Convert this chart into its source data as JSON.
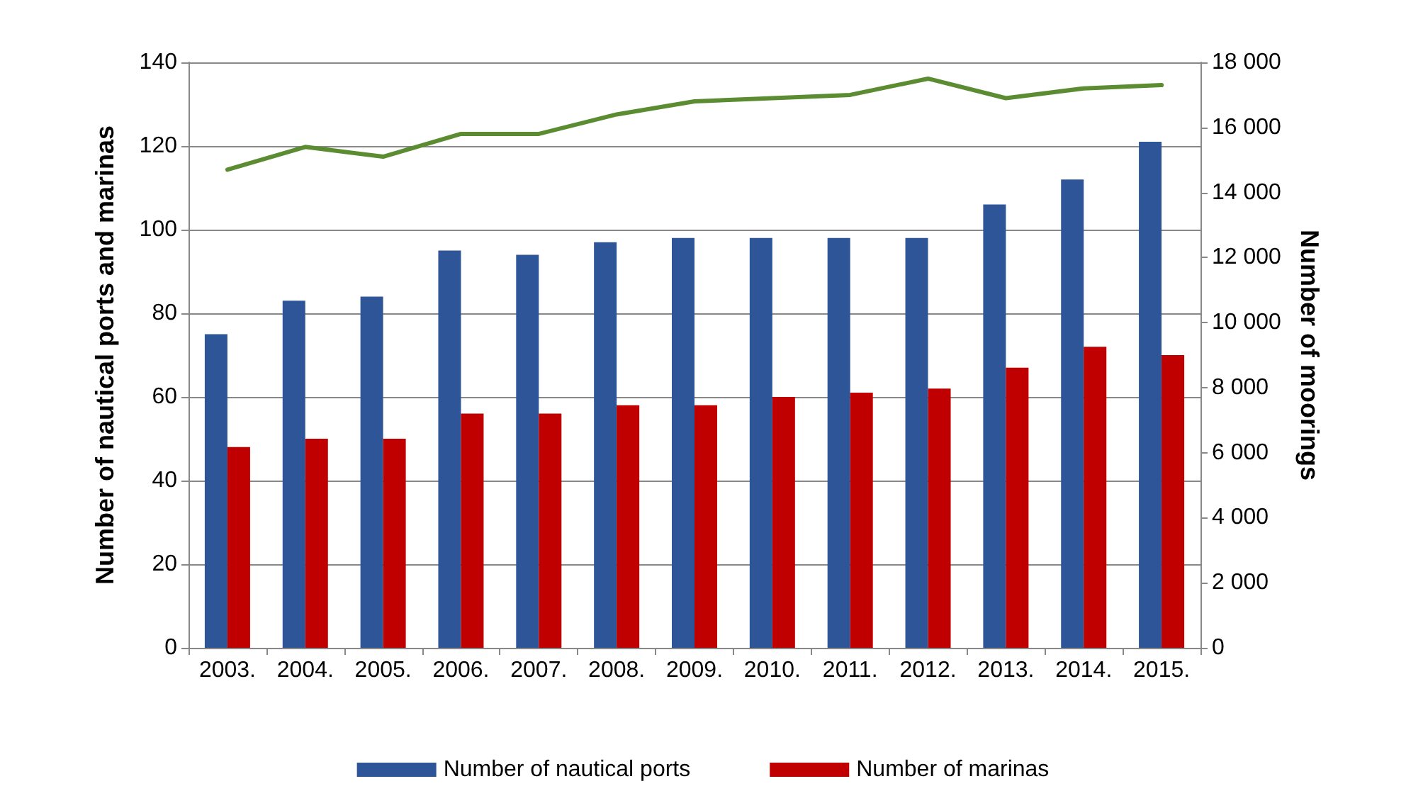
{
  "chart_data": {
    "type": "bar",
    "categories": [
      "2003.",
      "2004.",
      "2005.",
      "2006.",
      "2007.",
      "2008.",
      "2009.",
      "2010.",
      "2011.",
      "2012.",
      "2013.",
      "2014.",
      "2015."
    ],
    "ylabel": "Number of nautical ports and marinas",
    "y2label": "Number of moorings",
    "series": [
      {
        "name": "Number of nautical ports",
        "color": "#2e5597",
        "values": [
          75,
          83,
          84,
          95,
          94,
          97,
          98,
          98,
          98,
          98,
          106,
          112,
          121
        ]
      },
      {
        "name": "Number of marinas",
        "color": "#c00000",
        "values": [
          48,
          50,
          50,
          56,
          56,
          58,
          58,
          60,
          61,
          62,
          67,
          72,
          70
        ]
      },
      {
        "type": "line",
        "axis": "y2",
        "color": "#5b8c32",
        "values": [
          14700,
          15400,
          15100,
          15800,
          15800,
          16400,
          16800,
          16900,
          17000,
          17500,
          16900,
          17200,
          17300
        ]
      }
    ],
    "ylim": [
      0,
      140
    ],
    "yticks": [
      0,
      20,
      40,
      60,
      80,
      100,
      120,
      140
    ],
    "y2lim": [
      0,
      18000
    ],
    "y2ticks": [
      0,
      {
        "value": 2000,
        "label": "2 000"
      },
      {
        "value": 4000,
        "label": "4 000"
      },
      {
        "value": 6000,
        "label": "6 000"
      },
      {
        "value": 8000,
        "label": "8 000"
      },
      {
        "value": 10000,
        "label": "10 000"
      },
      {
        "value": 12000,
        "label": "12 000"
      },
      {
        "value": 14000,
        "label": "14 000"
      },
      {
        "value": 16000,
        "label": "16 000"
      },
      {
        "value": 18000,
        "label": "18 000"
      }
    ],
    "grid": "y",
    "legend": "bottom",
    "marker": "none",
    "line_style": "solid"
  }
}
